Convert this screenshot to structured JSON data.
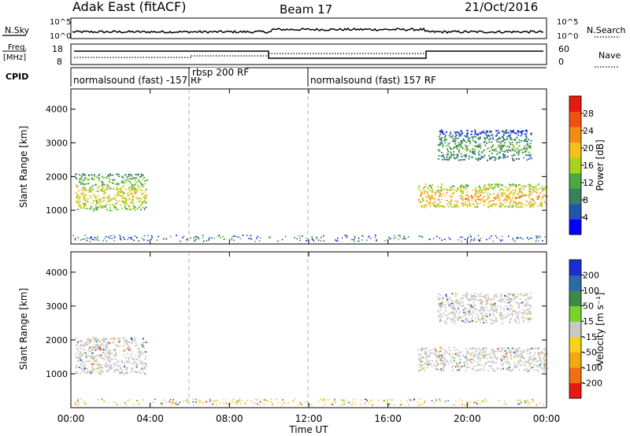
{
  "header": {
    "title": "Adak East (fitACF)",
    "beam": "Beam 17",
    "date": "21/Oct/2016"
  },
  "labels": {
    "nsky": "N.Sky",
    "nsearch": "N.Search",
    "freq_line1": "Freq.",
    "freq_line2": "[MHz]",
    "nave": "Nave",
    "cpid": "CPID",
    "x_axis": "Time UT",
    "y_axis": "Slant Range [km]",
    "power_cbar": "Power [dB]",
    "velocity_cbar": "Velocity [m s⁻¹]"
  },
  "noise_panel": {
    "left_ticks": [
      "10^5",
      "10^0"
    ],
    "right_ticks": [
      "10^5",
      "10^0"
    ]
  },
  "freq_panel": {
    "left_ticks": [
      "18",
      "8"
    ],
    "right_ticks": [
      "60",
      "0"
    ]
  },
  "cpid_segments": [
    {
      "label": "normalsound (fast) -157 RF",
      "start": 0,
      "end": 6
    },
    {
      "label": "rbsp 200 RF",
      "start": 6,
      "end": 12
    },
    {
      "label": "normalsound (fast) 157 RF",
      "start": 12,
      "end": 24
    }
  ],
  "chart_data": [
    {
      "type": "heatmap",
      "name": "power",
      "ylabel": "Slant Range [km]",
      "xlabel": "Time UT",
      "x_range": [
        0,
        24
      ],
      "y_range": [
        0,
        4600
      ],
      "y_ticks": [
        "1000",
        "2000",
        "3000",
        "4000"
      ],
      "colorbar": {
        "label": "Power [dB]",
        "ticks": [
          "4",
          "8",
          "12",
          "16",
          "20",
          "24",
          "28"
        ],
        "range": [
          0,
          30
        ],
        "colors": [
          "#0000ff",
          "#2255b0",
          "#3a8060",
          "#4aa845",
          "#a8d21c",
          "#f2c21a",
          "#f48a14",
          "#f05012",
          "#e61a10"
        ]
      },
      "echo_regions": [
        {
          "t_start": 0.2,
          "t_end": 3.8,
          "r_low": 1000,
          "r_high": 2100,
          "power": 14
        },
        {
          "t_start": 17.5,
          "t_end": 24.0,
          "r_low": 1100,
          "r_high": 1800,
          "power": 18
        },
        {
          "t_start": 18.5,
          "t_end": 23.2,
          "r_low": 2500,
          "r_high": 3400,
          "power": 8
        }
      ]
    },
    {
      "type": "heatmap",
      "name": "velocity",
      "ylabel": "Slant Range [km]",
      "xlabel": "Time UT",
      "x_range": [
        0,
        24
      ],
      "y_range": [
        0,
        4600
      ],
      "y_ticks": [
        "1000",
        "2000",
        "3000",
        "4000"
      ],
      "colorbar": {
        "label": "Velocity [m s⁻¹]",
        "ticks": [
          "200",
          "100",
          "50",
          "15",
          "-15",
          "-50",
          "-100",
          "-200"
        ],
        "colors": [
          "#1a2ed2",
          "#2c6aa8",
          "#3b8a4a",
          "#7ad22a",
          "#c8c8c8",
          "#f6d21a",
          "#f4a814",
          "#f07012",
          "#e61a10"
        ]
      },
      "echo_regions": [
        {
          "t_start": 0.2,
          "t_end": 3.8,
          "r_low": 1000,
          "r_high": 2100,
          "velocity": 0
        },
        {
          "t_start": 17.5,
          "t_end": 24.0,
          "r_low": 1100,
          "r_high": 1800,
          "velocity": 0
        },
        {
          "t_start": 18.5,
          "t_end": 23.2,
          "r_low": 2500,
          "r_high": 3400,
          "velocity": 0
        }
      ]
    }
  ],
  "time_axis": {
    "ticks": [
      "00:00",
      "04:00",
      "08:00",
      "12:00",
      "16:00",
      "20:00",
      "00:00"
    ],
    "tick_hours": [
      0,
      4,
      8,
      12,
      16,
      20,
      24
    ]
  }
}
